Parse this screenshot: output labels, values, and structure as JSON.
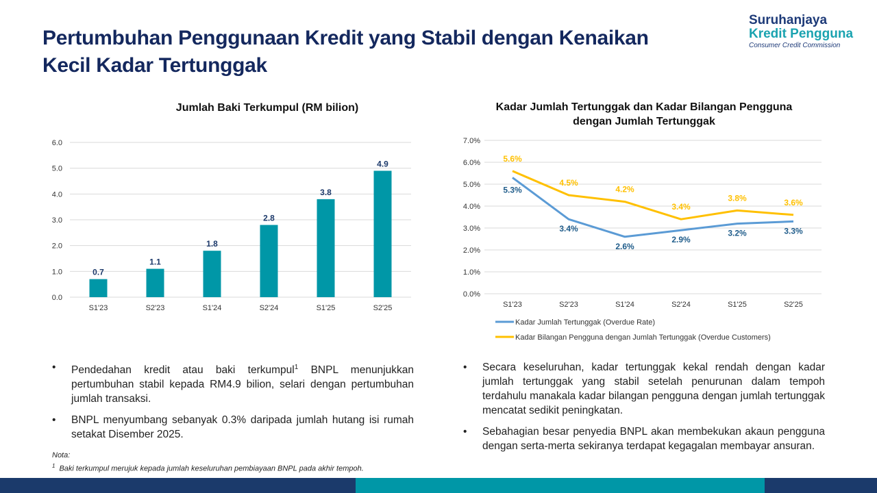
{
  "title": "Pertumbuhan Penggunaan Kredit yang Stabil dengan Kenaikan Kecil Kadar Tertunggak",
  "logo": {
    "line1": "Suruhanjaya",
    "line2": "Kredit Pengguna",
    "line3": "Consumer Credit Commission"
  },
  "chart_data": [
    {
      "type": "bar",
      "title": "Jumlah Baki Terkumpul (RM bilion)",
      "categories": [
        "S1'23",
        "S2'23",
        "S1'24",
        "S2'24",
        "S1'25",
        "S2'25"
      ],
      "values": [
        0.7,
        1.1,
        1.8,
        2.8,
        3.8,
        4.9
      ],
      "data_labels": [
        "0.7",
        "1.1",
        "1.8",
        "2.8",
        "3.8",
        "4.9"
      ],
      "ylim": [
        0,
        6
      ],
      "yticks": [
        "0.0",
        "1.0",
        "2.0",
        "3.0",
        "4.0",
        "5.0",
        "6.0"
      ],
      "grid": true,
      "color": "#0097a7",
      "label_color": "#1d3a6b"
    },
    {
      "type": "line",
      "title": "Kadar Jumlah Tertunggak dan Kadar Bilangan Pengguna dengan Jumlah Tertunggak",
      "categories": [
        "S1'23",
        "S2'23",
        "S1'24",
        "S2'24",
        "S1'25",
        "S2'25"
      ],
      "ylim": [
        0,
        7
      ],
      "yticks": [
        "0.0%",
        "1.0%",
        "2.0%",
        "3.0%",
        "4.0%",
        "5.0%",
        "6.0%",
        "7.0%"
      ],
      "grid": true,
      "legend": "bottom",
      "series": [
        {
          "name": "Kadar Jumlah Tertunggak (Overdue Rate)",
          "values": [
            5.3,
            3.4,
            2.6,
            2.9,
            3.2,
            3.3
          ],
          "labels": [
            "5.3%",
            "3.4%",
            "2.6%",
            "2.9%",
            "3.2%",
            "3.3%"
          ],
          "color": "#5b9bd5",
          "label_color": "#1f5c8a"
        },
        {
          "name": "Kadar Bilangan Pengguna dengan Jumlah Tertunggak (Overdue Customers)",
          "values": [
            5.6,
            4.5,
            4.2,
            3.4,
            3.8,
            3.6
          ],
          "labels": [
            "5.6%",
            "4.5%",
            "4.2%",
            "3.4%",
            "3.8%",
            "3.6%"
          ],
          "color": "#ffc000",
          "label_color": "#ffc000"
        }
      ]
    }
  ],
  "left_bullets": [
    {
      "pre": "Pendedahan kredit atau baki terkumpul",
      "sup": "1",
      "post": " BNPL menunjukkan pertumbuhan stabil kepada RM4.9 bilion, selari dengan pertumbuhan jumlah transaksi."
    },
    {
      "pre": "BNPL menyumbang sebanyak 0.3% daripada jumlah hutang isi rumah setakat Disember 2025.",
      "sup": "",
      "post": ""
    }
  ],
  "right_bullets": [
    "Secara keseluruhan, kadar tertunggak kekal rendah dengan kadar jumlah tertunggak yang stabil setelah penurunan dalam tempoh terdahulu manakala kadar bilangan pengguna dengan jumlah tertunggak mencatat sedikit peningkatan.",
    "Sebahagian besar penyedia BNPL akan membekukan akaun pengguna dengan serta-merta sekiranya terdapat kegagalan membayar ansuran."
  ],
  "note": {
    "label": "Nota:",
    "marker": "1",
    "text": "Baki terkumpul merujuk kepada jumlah keseluruhan pembiayaan BNPL pada akhir tempoh."
  },
  "colors": {
    "navy": "#1b3a6b",
    "teal": "#0097a7"
  }
}
